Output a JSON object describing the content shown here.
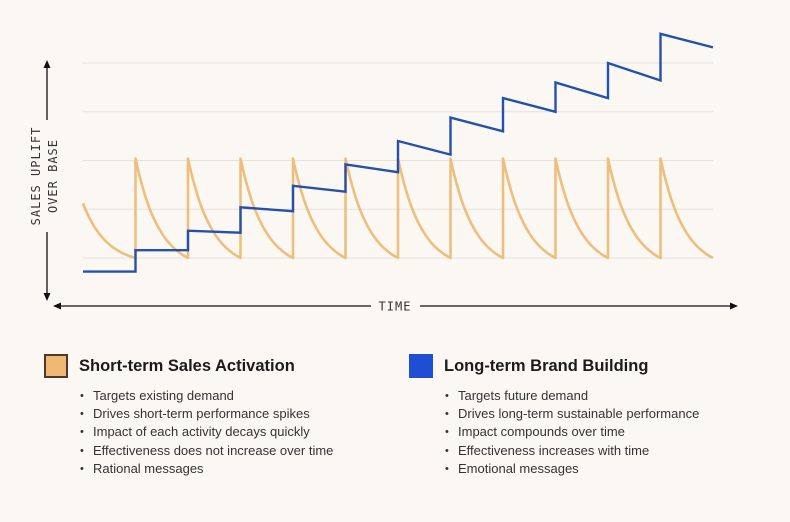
{
  "chart_data": {
    "type": "line",
    "title": "",
    "xlabel": "TIME",
    "ylabel_lines": [
      "SALES UPLIFT",
      "OVER BASE"
    ],
    "grid": true,
    "xlim": [
      0,
      12
    ],
    "ylim": [
      0,
      100
    ],
    "series": [
      {
        "name": "Short-term Sales Activation",
        "color": "#efbe7d",
        "shape": "sawtooth",
        "period": 1,
        "start": 0,
        "end": 12,
        "peak": 51,
        "trough": 0,
        "initial": 28
      },
      {
        "name": "Long-term Brand Building",
        "color": "#2450b0",
        "shape": "staircase",
        "segments": [
          {
            "x0": 0,
            "x1": 1,
            "y0": -7,
            "y1": -7
          },
          {
            "x0": 1,
            "x1": 2,
            "y0": 4,
            "y1": 4
          },
          {
            "x0": 2,
            "x1": 3,
            "y0": 14,
            "y1": 13
          },
          {
            "x0": 3,
            "x1": 4,
            "y0": 26,
            "y1": 24
          },
          {
            "x0": 4,
            "x1": 5,
            "y0": 37,
            "y1": 34
          },
          {
            "x0": 5,
            "x1": 6,
            "y0": 48,
            "y1": 44
          },
          {
            "x0": 6,
            "x1": 7,
            "y0": 60,
            "y1": 53
          },
          {
            "x0": 7,
            "x1": 8,
            "y0": 72,
            "y1": 65
          },
          {
            "x0": 8,
            "x1": 9,
            "y0": 82,
            "y1": 75
          },
          {
            "x0": 9,
            "x1": 10,
            "y0": 90,
            "y1": 82
          },
          {
            "x0": 10,
            "x1": 11,
            "y0": 100,
            "y1": 91
          },
          {
            "x0": 11,
            "x1": 12,
            "y0": 115,
            "y1": 108
          }
        ]
      }
    ]
  },
  "legend": {
    "short": {
      "title": "Short-term Sales Activation",
      "points": [
        "Targets existing demand",
        "Drives short-term performance spikes",
        "Impact of each activity decays quickly",
        "Effectiveness does not increase over time",
        "Rational messages"
      ]
    },
    "long": {
      "title": "Long-term Brand Building",
      "points": [
        "Targets future demand",
        "Drives long-term sustainable performance",
        "Impact compounds over time",
        "Effectiveness increases with time",
        "Emotional messages"
      ]
    }
  }
}
